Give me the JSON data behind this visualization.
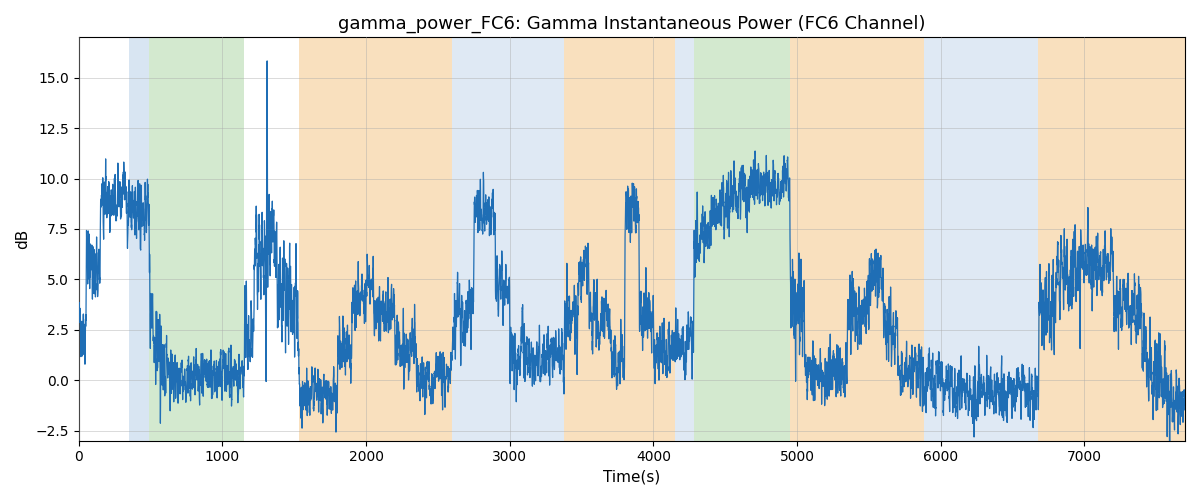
{
  "title": "gamma_power_FC6: Gamma Instantaneous Power (FC6 Channel)",
  "xlabel": "Time(s)",
  "ylabel": "dB",
  "xlim": [
    0,
    7700
  ],
  "ylim": [
    -3.0,
    17.0
  ],
  "line_color": "#1f6eb5",
  "line_width": 0.9,
  "background_color": "#ffffff",
  "grid_color": "#aaaaaa",
  "grid_alpha": 0.6,
  "title_fontsize": 13,
  "label_fontsize": 11,
  "regions": [
    {
      "xmin": 350,
      "xmax": 490,
      "color": "#b8d0e8",
      "alpha": 0.55
    },
    {
      "xmin": 490,
      "xmax": 1150,
      "color": "#a8d4a0",
      "alpha": 0.5
    },
    {
      "xmin": 1530,
      "xmax": 2600,
      "color": "#f5c88a",
      "alpha": 0.55
    },
    {
      "xmin": 2600,
      "xmax": 3380,
      "color": "#b8d0e8",
      "alpha": 0.45
    },
    {
      "xmin": 3380,
      "xmax": 4150,
      "color": "#f5c88a",
      "alpha": 0.55
    },
    {
      "xmin": 4150,
      "xmax": 4280,
      "color": "#b8d0e8",
      "alpha": 0.45
    },
    {
      "xmin": 4280,
      "xmax": 4950,
      "color": "#a8d4a0",
      "alpha": 0.5
    },
    {
      "xmin": 4950,
      "xmax": 5880,
      "color": "#f5c88a",
      "alpha": 0.55
    },
    {
      "xmin": 5880,
      "xmax": 6680,
      "color": "#b8d0e8",
      "alpha": 0.45
    },
    {
      "xmin": 6680,
      "xmax": 7700,
      "color": "#f5c88a",
      "alpha": 0.55
    }
  ],
  "seed": 42,
  "n_points": 7700
}
